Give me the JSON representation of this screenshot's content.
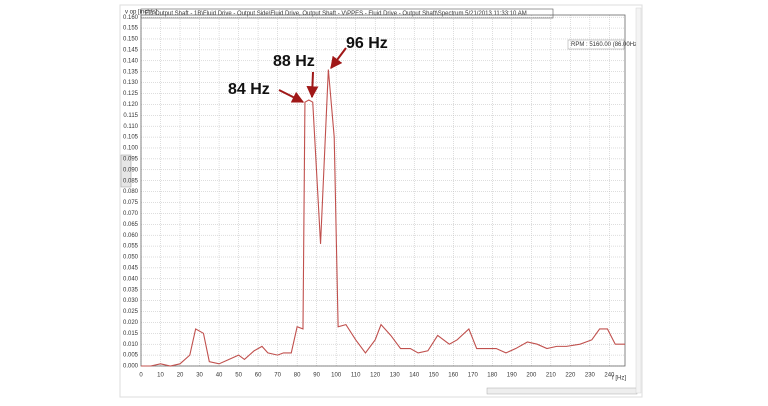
{
  "chart_data": {
    "type": "line",
    "title": "ED Output Shaft - 1B\\Fluid Drive - Output Side\\Fluid Drive, Output Shaft - V\\PPES - Fluid Drive - Output Shaft\\Spectrum 5/21/2013 11:33:10 AM",
    "y_label": "v op [inch/s]",
    "x_label": "f [Hz]",
    "info_box": "RPM : 5160.00 (86.00Hz)",
    "annotations": [
      "84 Hz",
      "88 Hz",
      "96 Hz"
    ],
    "x": [
      0,
      5,
      10,
      15,
      20,
      25,
      28,
      32,
      35,
      40,
      45,
      50,
      53,
      58,
      62,
      65,
      70,
      73,
      77,
      80,
      83,
      84,
      86,
      88,
      92,
      96,
      99,
      101,
      105,
      110,
      115,
      120,
      123,
      128,
      133,
      138,
      142,
      147,
      152,
      158,
      162,
      168,
      172,
      177,
      182,
      187,
      192,
      198,
      203,
      208,
      213,
      218,
      225,
      231,
      235,
      239,
      243,
      248
    ],
    "series": [
      {
        "name": "Spectrum",
        "color": "#c0504d",
        "values": [
          0.0,
          0.0,
          0.001,
          0.0,
          0.001,
          0.005,
          0.017,
          0.015,
          0.002,
          0.001,
          0.003,
          0.005,
          0.003,
          0.007,
          0.009,
          0.006,
          0.005,
          0.006,
          0.006,
          0.018,
          0.017,
          0.121,
          0.122,
          0.121,
          0.056,
          0.136,
          0.105,
          0.018,
          0.019,
          0.012,
          0.006,
          0.012,
          0.019,
          0.014,
          0.008,
          0.008,
          0.006,
          0.007,
          0.014,
          0.01,
          0.012,
          0.017,
          0.008,
          0.008,
          0.008,
          0.006,
          0.008,
          0.011,
          0.01,
          0.008,
          0.009,
          0.009,
          0.01,
          0.012,
          0.017,
          0.017,
          0.01,
          0.01
        ]
      }
    ],
    "xlim": [
      0,
      248
    ],
    "xticks": [
      0,
      10,
      20,
      30,
      40,
      50,
      60,
      70,
      80,
      90,
      100,
      110,
      120,
      130,
      140,
      150,
      160,
      170,
      180,
      190,
      200,
      210,
      220,
      230,
      240
    ],
    "ylim": [
      0,
      0.161
    ],
    "yticks": [
      {
        "value": 0,
        "label": "0.000"
      },
      {
        "value": 0.005,
        "label": "0.005"
      },
      {
        "value": 0.01,
        "label": "0.010"
      },
      {
        "value": 0.015,
        "label": "0.015"
      },
      {
        "value": 0.02,
        "label": "0.020"
      },
      {
        "value": 0.025,
        "label": "0.025"
      },
      {
        "value": 0.03,
        "label": "0.030"
      },
      {
        "value": 0.035,
        "label": "0.035"
      },
      {
        "value": 0.04,
        "label": "0.040"
      },
      {
        "value": 0.045,
        "label": "0.045"
      },
      {
        "value": 0.05,
        "label": "0.050"
      },
      {
        "value": 0.055,
        "label": "0.055"
      },
      {
        "value": 0.06,
        "label": "0.060"
      },
      {
        "value": 0.065,
        "label": "0.065"
      },
      {
        "value": 0.07,
        "label": "0.070"
      },
      {
        "value": 0.075,
        "label": "0.075"
      },
      {
        "value": 0.08,
        "label": "0.080"
      },
      {
        "value": 0.085,
        "label": "0.085"
      },
      {
        "value": 0.09,
        "label": "0.090"
      },
      {
        "value": 0.095,
        "label": "0.095"
      },
      {
        "value": 0.1,
        "label": "0.100"
      },
      {
        "value": 0.105,
        "label": "0.105"
      },
      {
        "value": 0.11,
        "label": "0.110"
      },
      {
        "value": 0.115,
        "label": "0.115"
      },
      {
        "value": 0.12,
        "label": "0.120"
      },
      {
        "value": 0.125,
        "label": "0.125"
      },
      {
        "value": 0.13,
        "label": "0.130"
      },
      {
        "value": 0.135,
        "label": "0.135"
      },
      {
        "value": 0.14,
        "label": "0.140"
      },
      {
        "value": 0.145,
        "label": "0.145"
      },
      {
        "value": 0.15,
        "label": "0.150"
      },
      {
        "value": 0.155,
        "label": "0.155"
      },
      {
        "value": 0.16,
        "label": "0.160"
      }
    ],
    "grid": true
  }
}
